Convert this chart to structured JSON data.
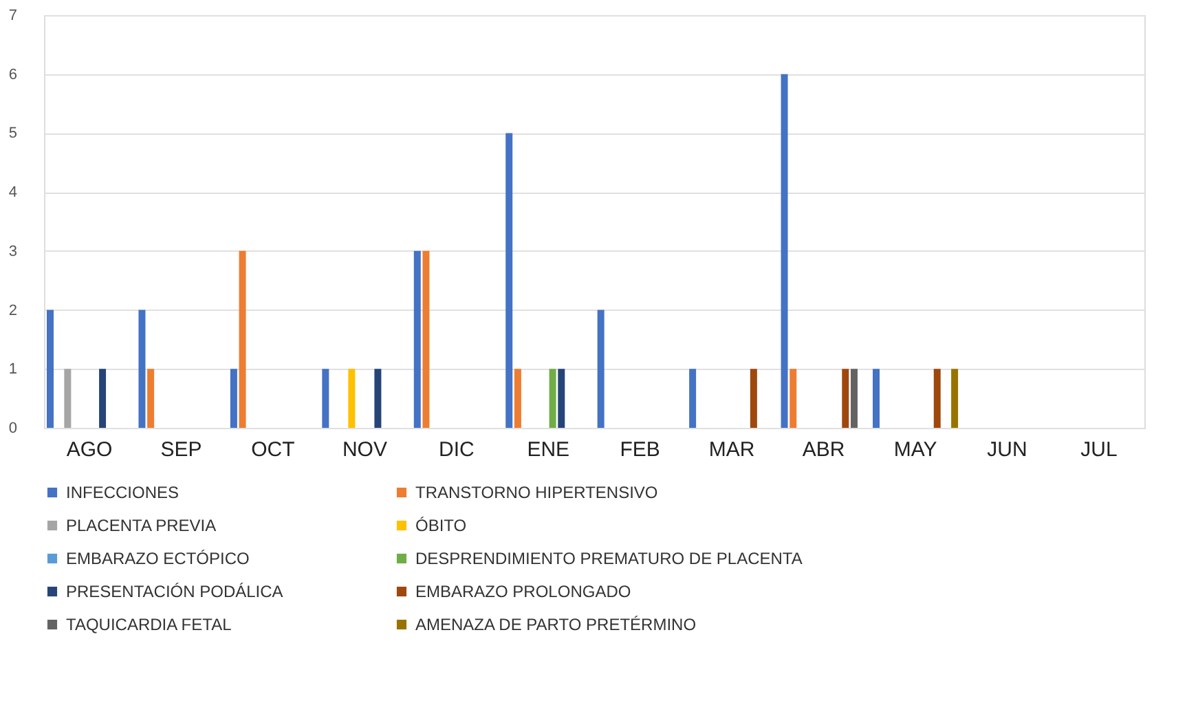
{
  "chart_data": {
    "type": "bar",
    "categories": [
      "AGO",
      "SEP",
      "OCT",
      "NOV",
      "DIC",
      "ENE",
      "FEB",
      "MAR",
      "ABR",
      "MAY",
      "JUN",
      "JUL"
    ],
    "series": [
      {
        "name": "INFECCIONES",
        "color": "#4472c4",
        "values": [
          2,
          2,
          1,
          1,
          3,
          5,
          2,
          1,
          6,
          1,
          0,
          0
        ]
      },
      {
        "name": "TRANSTORNO HIPERTENSIVO",
        "color": "#ed7d31",
        "values": [
          0,
          1,
          3,
          0,
          3,
          1,
          0,
          0,
          1,
          0,
          0,
          0
        ]
      },
      {
        "name": "PLACENTA PREVIA",
        "color": "#a5a5a5",
        "values": [
          1,
          0,
          0,
          0,
          0,
          0,
          0,
          0,
          0,
          0,
          0,
          0
        ]
      },
      {
        "name": "ÓBITO",
        "color": "#ffc000",
        "values": [
          0,
          0,
          0,
          1,
          0,
          0,
          0,
          0,
          0,
          0,
          0,
          0
        ]
      },
      {
        "name": "EMBARAZO ECTÓPICO",
        "color": "#5b9bd5",
        "values": [
          0,
          0,
          0,
          0,
          0,
          0,
          0,
          0,
          0,
          0,
          0,
          0
        ]
      },
      {
        "name": "DESPRENDIMIENTO PREMATURO DE PLACENTA",
        "color": "#70ad47",
        "values": [
          0,
          0,
          0,
          0,
          0,
          1,
          0,
          0,
          0,
          0,
          0,
          0
        ]
      },
      {
        "name": "PRESENTACIÓN PODÁLICA",
        "color": "#264478",
        "values": [
          1,
          0,
          0,
          1,
          0,
          1,
          0,
          0,
          0,
          0,
          0,
          0
        ]
      },
      {
        "name": "EMBARAZO PROLONGADO",
        "color": "#9e480e",
        "values": [
          0,
          0,
          0,
          0,
          0,
          0,
          0,
          1,
          1,
          1,
          0,
          0
        ]
      },
      {
        "name": "TAQUICARDIA FETAL",
        "color": "#636363",
        "values": [
          0,
          0,
          0,
          0,
          0,
          0,
          0,
          0,
          1,
          0,
          0,
          0
        ]
      },
      {
        "name": "AMENAZA DE PARTO PRETÉRMINO",
        "color": "#997300",
        "values": [
          0,
          0,
          0,
          0,
          0,
          0,
          0,
          0,
          0,
          1,
          0,
          0
        ]
      }
    ],
    "ylim": [
      0,
      7
    ],
    "yticks": [
      0,
      1,
      2,
      3,
      4,
      5,
      6,
      7
    ],
    "grid": "y",
    "legend": "bottom"
  }
}
